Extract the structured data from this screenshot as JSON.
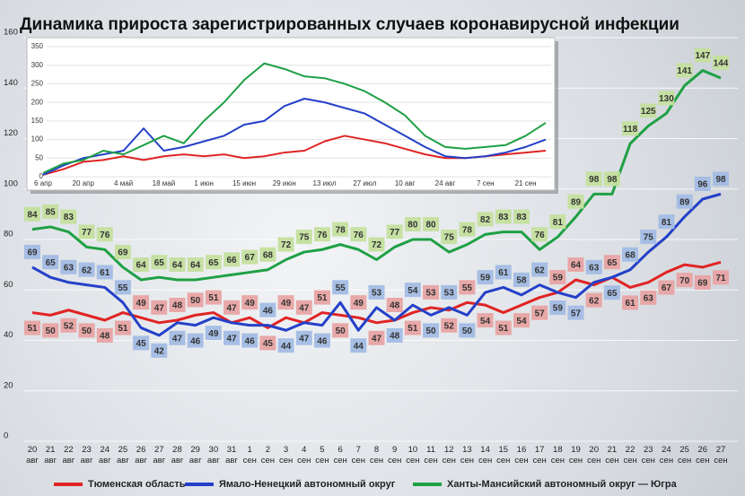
{
  "chart_data": [
    {
      "type": "line",
      "title": "Динамика прироста зарегистрированных случаев коронавирусной инфекции",
      "categories": [
        "20\nавг",
        "21\nавг",
        "22\nавг",
        "23\nавг",
        "24\nавг",
        "25\nавг",
        "26\nавг",
        "27\nавг",
        "28\nавг",
        "29\nавг",
        "30\nавг",
        "31\nавг",
        "1\nсен",
        "2\nсен",
        "3\nсен",
        "4\nсен",
        "5\nсен",
        "6\nсен",
        "7\nсен",
        "8\nсен",
        "9\nсен",
        "10\nсен",
        "11\nсен",
        "12\nсен",
        "13\nсен",
        "14\nсен",
        "15\nсен",
        "16\nсен",
        "17\nсен",
        "18\nсен",
        "19\nсен",
        "20\nсен",
        "21\nсен",
        "22\nсен",
        "23\nсен",
        "24\nсен",
        "25\nсен",
        "26\nсен",
        "27\nсен"
      ],
      "series": [
        {
          "name": "Тюменская область",
          "color": "#e02424",
          "label_color": "#e8a3a3",
          "values": [
            51,
            50,
            52,
            50,
            48,
            51,
            49,
            47,
            48,
            50,
            51,
            47,
            49,
            45,
            49,
            47,
            51,
            50,
            49,
            47,
            48,
            51,
            53,
            52,
            55,
            54,
            51,
            54,
            57,
            59,
            64,
            62,
            65,
            61,
            63,
            67,
            70,
            69,
            71
          ]
        },
        {
          "name": "Ямало-Ненецкий автономный округ",
          "color": "#2440c8",
          "label_color": "#a3bce4",
          "values": [
            69,
            65,
            63,
            62,
            61,
            55,
            45,
            42,
            47,
            46,
            49,
            47,
            46,
            46,
            44,
            47,
            46,
            55,
            44,
            53,
            48,
            54,
            50,
            53,
            50,
            59,
            61,
            58,
            62,
            59,
            57,
            63,
            65,
            68,
            75,
            81,
            89,
            96,
            98
          ]
        },
        {
          "name": "Ханты-Мансийский автономный округ — Югра",
          "color": "#1fa045",
          "label_color": "#c4df9e",
          "values": [
            84,
            85,
            83,
            77,
            76,
            69,
            64,
            65,
            64,
            64,
            65,
            66,
            67,
            68,
            72,
            75,
            76,
            78,
            76,
            72,
            77,
            80,
            80,
            75,
            78,
            82,
            83,
            83,
            76,
            81,
            89,
            98,
            98,
            118,
            125,
            130,
            141,
            147,
            144
          ]
        }
      ],
      "ylim": [
        0,
        160
      ],
      "yticks": [
        0,
        20,
        40,
        60,
        80,
        100,
        120,
        140,
        160
      ],
      "grid": true
    },
    {
      "type": "line",
      "x": [
        "6 апр",
        null,
        "20 апр",
        null,
        "4 май",
        null,
        "18 май",
        null,
        "1 июн",
        null,
        "15 июн",
        null,
        "29 июн",
        null,
        "13 июл",
        null,
        "27 июл",
        null,
        "10 авг",
        null,
        "24 авг",
        null,
        "7 сен",
        null,
        "21 сен",
        null
      ],
      "series": [
        {
          "color": "#e02424",
          "values": [
            5,
            20,
            40,
            45,
            55,
            45,
            55,
            60,
            55,
            60,
            50,
            55,
            65,
            70,
            95,
            110,
            100,
            90,
            75,
            60,
            50,
            50,
            55,
            60,
            65,
            70
          ]
        },
        {
          "color": "#2440c8",
          "values": [
            5,
            30,
            50,
            60,
            70,
            130,
            70,
            80,
            95,
            110,
            140,
            150,
            190,
            210,
            200,
            185,
            170,
            140,
            110,
            80,
            55,
            50,
            55,
            65,
            80,
            100
          ]
        },
        {
          "color": "#1fa045",
          "values": [
            10,
            35,
            45,
            70,
            60,
            85,
            110,
            90,
            150,
            200,
            260,
            305,
            290,
            270,
            265,
            250,
            230,
            200,
            165,
            110,
            80,
            75,
            80,
            85,
            110,
            145
          ]
        }
      ],
      "ylim": [
        0,
        350
      ],
      "yticks": [
        0,
        50,
        100,
        150,
        200,
        250,
        300,
        350
      ],
      "grid": true
    }
  ]
}
